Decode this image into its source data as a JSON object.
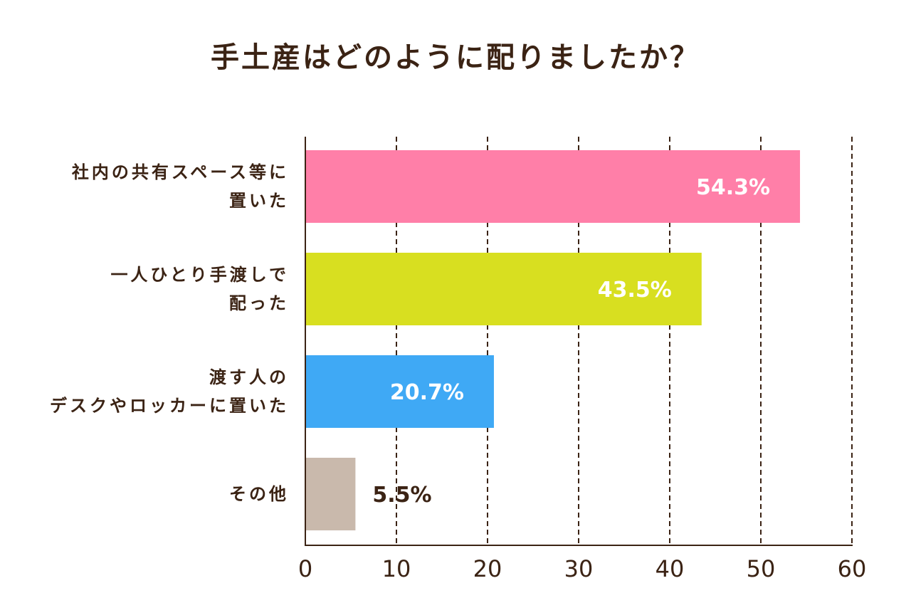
{
  "chart_data": {
    "type": "bar",
    "orientation": "horizontal",
    "title": "手土産はどのように配りましたか？",
    "categories": [
      [
        "社内の共有スペース等に",
        "置いた"
      ],
      [
        "一人ひとり手渡しで",
        "配った"
      ],
      [
        "渡す人の",
        "デスクやロッカーに置いた"
      ],
      [
        "その他"
      ]
    ],
    "values": [
      54.3,
      43.5,
      20.7,
      5.5
    ],
    "value_labels": [
      "54.3%",
      "43.5%",
      "20.7%",
      "5.5%"
    ],
    "colors": [
      "#ff7fa8",
      "#d8df20",
      "#3fa9f5",
      "#c9b9ac"
    ],
    "label_inside": [
      true,
      true,
      true,
      false
    ],
    "xlim": [
      0,
      60
    ],
    "xticks": [
      0,
      10,
      20,
      30,
      40,
      50,
      60
    ],
    "xlabel": "",
    "ylabel": "",
    "grid": "vertical-dashed",
    "legend": "none"
  }
}
